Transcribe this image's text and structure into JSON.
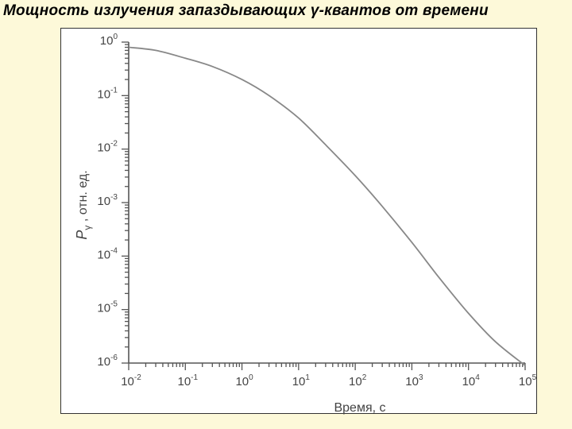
{
  "slide": {
    "title": "Мощность излучения запаздывающих γ-квантов от времени"
  },
  "chart_data": {
    "type": "line",
    "xlabel": "Время, с",
    "ylabel": "отн. ед.",
    "ylabel_symbol": "P",
    "ylabel_subscript": "γ",
    "ylabel_separator": " , ",
    "x_scale": "log",
    "y_scale": "log",
    "xlim": [
      0.01,
      100000
    ],
    "ylim": [
      1e-06,
      1
    ],
    "x_ticks": [
      {
        "value": 0.01,
        "base": "10",
        "exp": "-2"
      },
      {
        "value": 0.1,
        "base": "10",
        "exp": "-1"
      },
      {
        "value": 1,
        "base": "10",
        "exp": "0"
      },
      {
        "value": 10,
        "base": "10",
        "exp": "1"
      },
      {
        "value": 100,
        "base": "10",
        "exp": "2"
      },
      {
        "value": 1000,
        "base": "10",
        "exp": "3"
      },
      {
        "value": 10000,
        "base": "10",
        "exp": "4"
      },
      {
        "value": 100000,
        "base": "10",
        "exp": "5"
      }
    ],
    "y_ticks": [
      {
        "value": 1,
        "base": "10",
        "exp": "0"
      },
      {
        "value": 0.1,
        "base": "10",
        "exp": "-1"
      },
      {
        "value": 0.01,
        "base": "10",
        "exp": "-2"
      },
      {
        "value": 0.001,
        "base": "10",
        "exp": "-3"
      },
      {
        "value": 0.0001,
        "base": "10",
        "exp": "-4"
      },
      {
        "value": 1e-05,
        "base": "10",
        "exp": "-5"
      },
      {
        "value": 1e-06,
        "base": "10",
        "exp": "-6"
      }
    ],
    "grid": false,
    "series": [
      {
        "color": "#888888",
        "x": [
          0.01,
          0.03,
          0.1,
          0.3,
          1,
          3,
          10,
          30,
          100,
          300,
          1000,
          3000,
          10000,
          30000,
          100000
        ],
        "y": [
          0.8,
          0.7,
          0.5,
          0.35,
          0.2,
          0.1,
          0.038,
          0.012,
          0.0032,
          0.00085,
          0.00018,
          4e-05,
          8.5e-06,
          2.5e-06,
          9e-07
        ]
      }
    ]
  }
}
